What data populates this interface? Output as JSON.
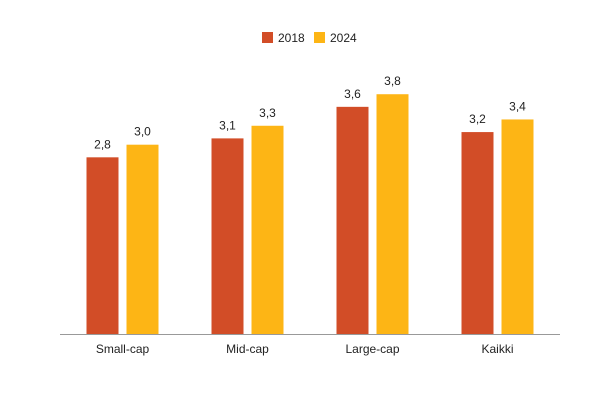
{
  "chart_data": {
    "type": "bar",
    "categories": [
      "Small-cap",
      "Mid-cap",
      "Large-cap",
      "Kaikki"
    ],
    "series": [
      {
        "name": "2018",
        "values": [
          2.8,
          3.1,
          3.6,
          3.2
        ],
        "labels": [
          "2,8",
          "3,1",
          "3,6",
          "3,2"
        ],
        "color": "#D24D27"
      },
      {
        "name": "2024",
        "values": [
          3.0,
          3.3,
          3.8,
          3.4
        ],
        "labels": [
          "3,0",
          "3,3",
          "3,8",
          "3,4"
        ],
        "color": "#FDB515"
      }
    ],
    "ylim": [
      0,
      4.4
    ],
    "grid": false,
    "legend_position": "top-center",
    "axis_color": "#999999"
  }
}
